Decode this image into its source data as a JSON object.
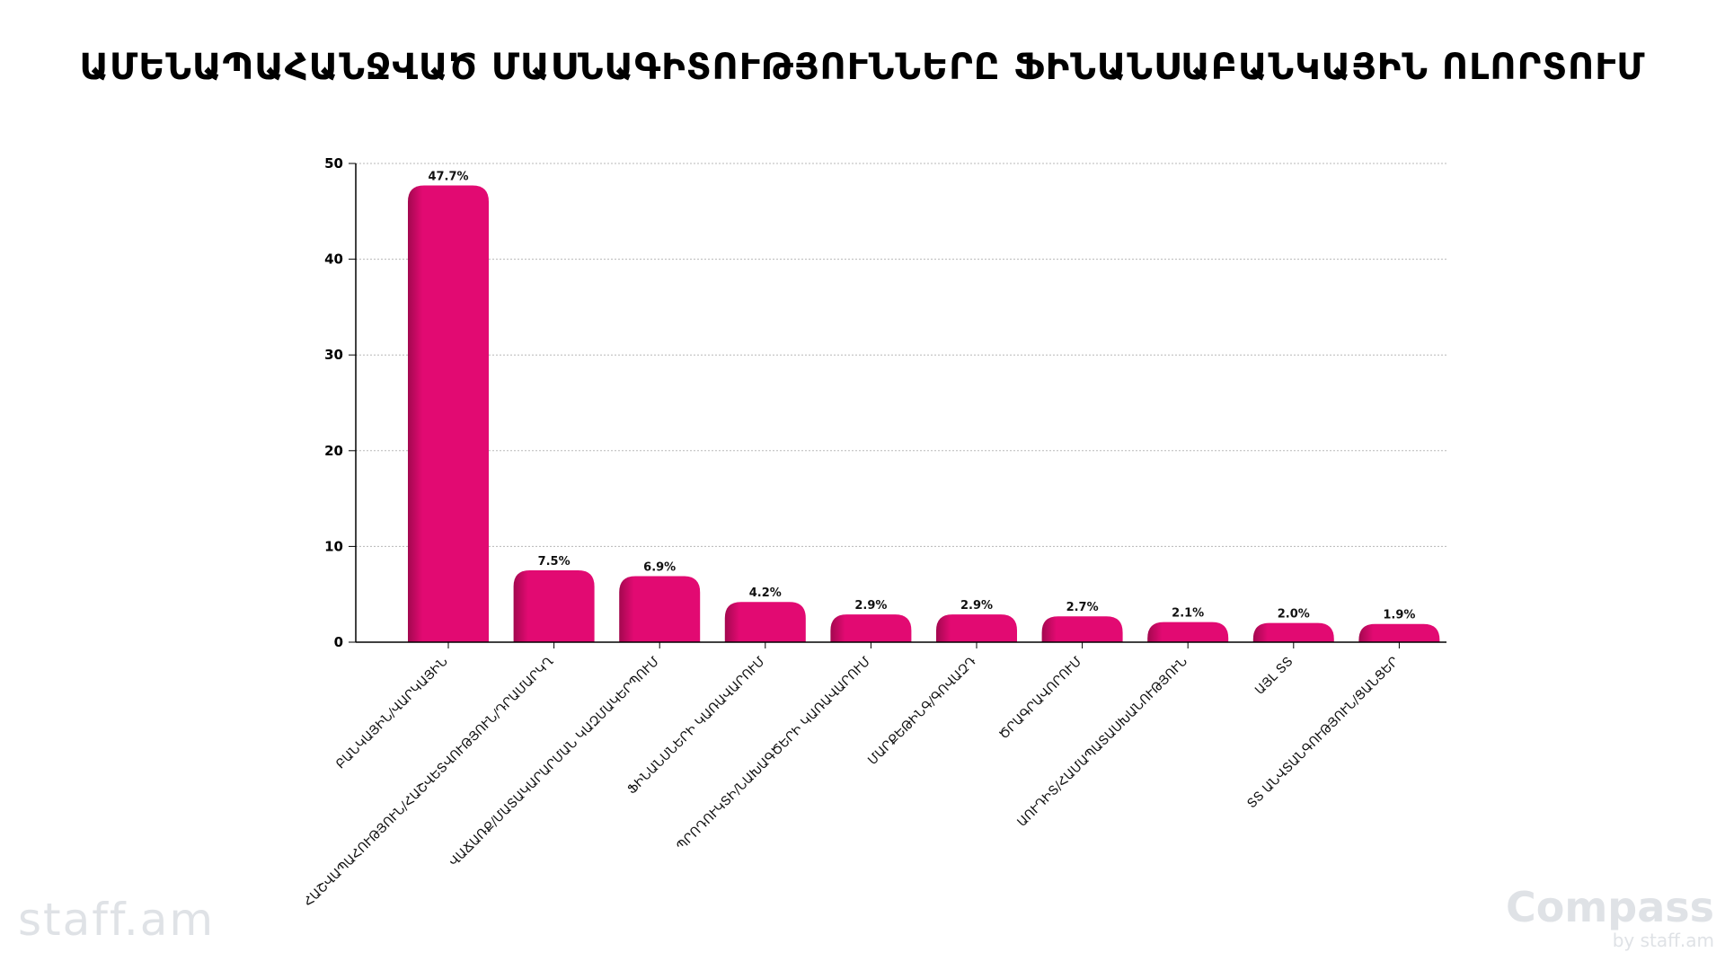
{
  "title": "ԱՄԵՆԱՊԱՀԱՆՋՎԱԾ ՄԱՍՆԱԳԻՏՈՒԹՅՈՒՆՆԵՐԸ ՖԻՆԱՆՍԱԲԱՆԿԱՅԻՆ ՈԼՈՐՏՈՒՄ",
  "logos": {
    "left": "staff.am",
    "right_main": "Compass",
    "right_sub": "by staff.am"
  },
  "colors": {
    "bar": "#e20a72",
    "bar_shade": "#a3084f"
  },
  "chart_data": {
    "type": "bar",
    "title": "ԱՄԵՆԱՊԱՀԱՆՋՎԱԾ ՄԱՍՆԱԳԻՏՈՒԹՅՈՒՆՆԵՐԸ ՖԻՆԱՆՍԱԲԱՆԿԱՅԻՆ ՈԼՈՐՏՈՒՄ",
    "categories": [
      "ԲԱՆԿԱՅԻՆ/ՎԱՐԿԱՅԻՆ",
      "ՀԱՇՎԱՊԱՀՈՒԹՅՈՒՆ/ՀԱՇՎԵՏՎՈՒԹՅՈՒՆ/ԴՐԱՄԱՐԿՂ",
      "ՎԱՃԱՌՔ/ՄԱՏԱԿԱՐԱՐՄԱՆ ԿԱԶՄԱԿԵՐՊՈՒՄ",
      "ՖԻՆԱՆՍՆԵՐԻ ԿԱՌԱՎԱՐՈՒՄ",
      "ՊՐՈԴՈՒԿՏԻ/ՆԱԽԱԳԾԵՐԻ ԿԱՌԱՎԱՐՈՒՄ",
      "ՄԱՐՔԵԹԻՆԳ/ԳՈՎԱԶԴ",
      "ԾՐԱԳՐԱՎՈՐՈՒՄ",
      "ԱՈՒԴԻՏ/ՀԱՄԱՊԱՏԱՍԽԱՆՈՒԹՅՈՒՆ",
      "ԱՅԼ ՏՏ",
      "ՏՏ ԱՆՎՏԱՆԳՈՒԹՅՈՒՆ/ՑԱՆՑԵՐ"
    ],
    "values": [
      47.7,
      7.5,
      6.9,
      4.2,
      2.9,
      2.9,
      2.7,
      2.1,
      2.0,
      1.9
    ],
    "data_labels": [
      "47.7%",
      "7.5%",
      "6.9%",
      "4.2%",
      "2.9%",
      "2.9%",
      "2.7%",
      "2.1%",
      "2.0%",
      "1.9%"
    ],
    "xlabel": "",
    "ylabel": "",
    "ylim": [
      0,
      50
    ],
    "yticks": [
      "0",
      "10",
      "20",
      "30",
      "40",
      "50"
    ],
    "grid": "horizontal dotted",
    "legend": "none"
  }
}
